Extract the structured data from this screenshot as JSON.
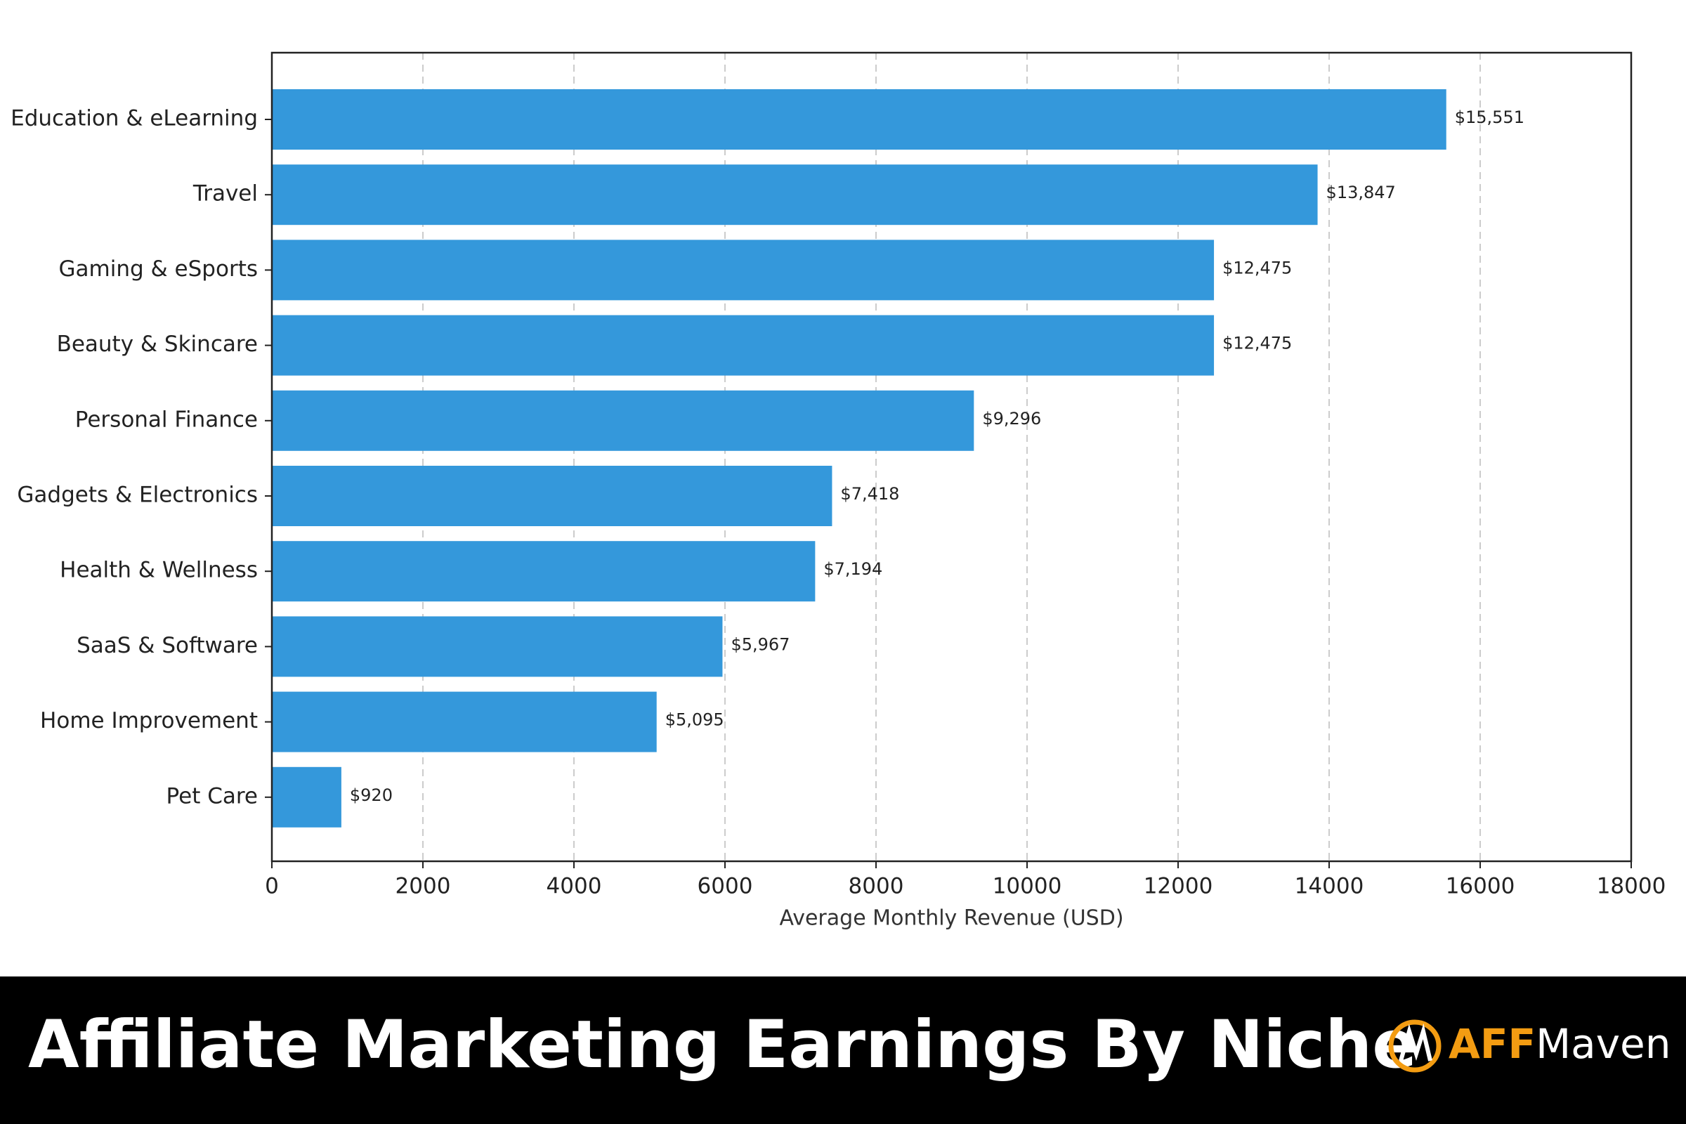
{
  "chart_data": {
    "type": "barh",
    "title": "Affiliate Marketing Earnings By Niche",
    "brand": [
      "AFF",
      "Maven"
    ],
    "x_label": "Average Monthly Revenue (USD)",
    "categories": [
      "Education & eLearning",
      "Travel",
      "Gaming & eSports",
      "Beauty & Skincare",
      "Personal Finance",
      "Gadgets & Electronics",
      "Health & Wellness",
      "SaaS & Software",
      "Home Improvement",
      "Pet Care"
    ],
    "values": [
      15551,
      13847,
      12475,
      12475,
      9296,
      7418,
      7194,
      5967,
      5095,
      920
    ],
    "value_labels": [
      "$15,551",
      "$13,847",
      "$12,475",
      "$12,475",
      "$9,296",
      "$7,418",
      "$7,194",
      "$5,967",
      "$5,095",
      "$920"
    ],
    "color": "#3498db",
    "xlim": [
      0,
      18000
    ],
    "xticks": [
      0,
      2000,
      4000,
      6000,
      8000,
      10000,
      12000,
      14000,
      16000,
      18000
    ],
    "grid": true
  }
}
